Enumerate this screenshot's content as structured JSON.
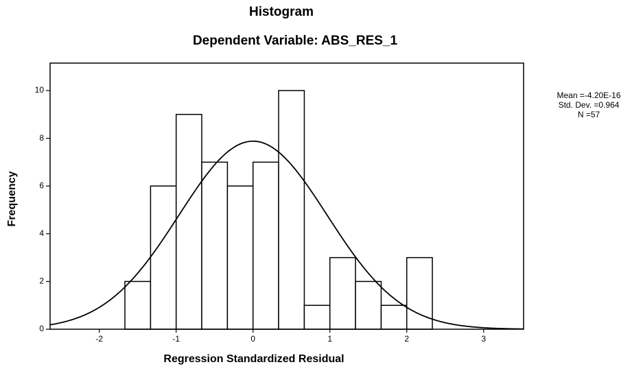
{
  "chart_data": {
    "type": "histogram",
    "title": "Histogram",
    "subtitle": "Dependent Variable: ABS_RES_1",
    "x_label": "Regression Standardized Residual",
    "y_label": "Frequency",
    "bins": [
      -1.667,
      -1.333,
      -1,
      -0.667,
      -0.333,
      0,
      0.333,
      0.667,
      1,
      1.333,
      1.667,
      2,
      2.333
    ],
    "counts": [
      2,
      6,
      9,
      7,
      6,
      7,
      10,
      1,
      3,
      2,
      1,
      3
    ],
    "xlim": [
      -2.64,
      3.52
    ],
    "ylim": [
      0,
      11.15
    ],
    "xticks": [
      -2,
      -1,
      0,
      1,
      2,
      3
    ],
    "yticks": [
      0,
      2,
      4,
      6,
      8,
      10
    ],
    "stats": {
      "mean": {
        "value": -4.2e-16,
        "label": "Mean =-4.20E-16"
      },
      "std_dev": {
        "value": 0.964,
        "label": "Std. Dev. =0.964"
      },
      "n": {
        "value": 57,
        "label": "N =57"
      }
    },
    "normal_curve": true,
    "bar_color": "#ffffff"
  }
}
